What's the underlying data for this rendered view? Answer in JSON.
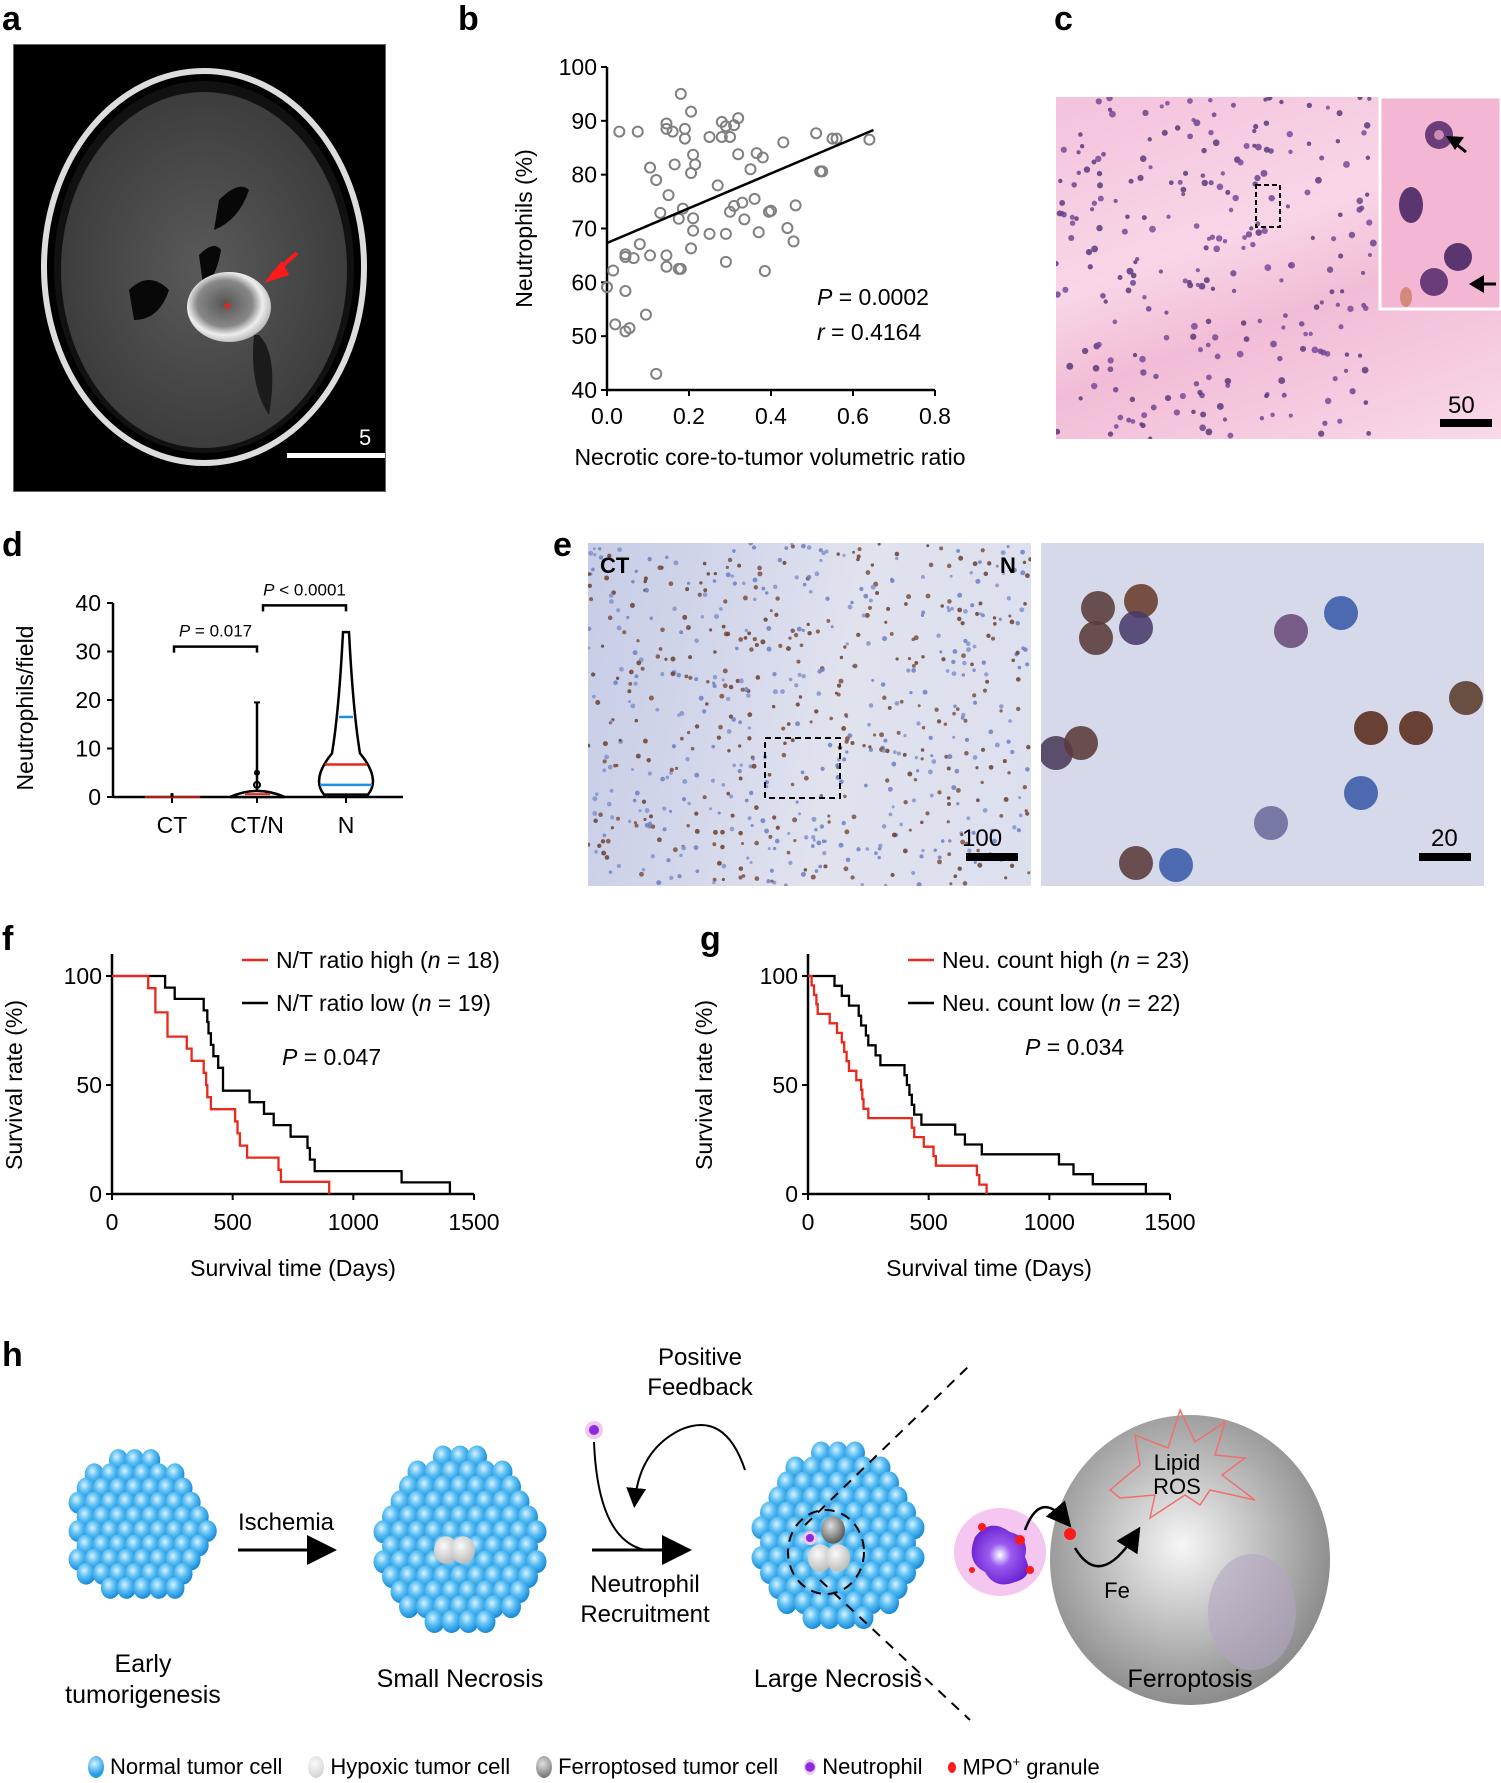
{
  "panels": {
    "a": {
      "label": "a",
      "scale_bar": "5",
      "annotation_arrow": "red-arrow",
      "annotation_star": "*"
    },
    "b": {
      "label": "b"
    },
    "c": {
      "label": "c",
      "scale_bar": "50"
    },
    "d": {
      "label": "d"
    },
    "e": {
      "label": "e",
      "left_tag_ct": "CT",
      "left_tag_n": "N",
      "scale_bar_left": "100",
      "scale_bar_right": "20"
    },
    "f": {
      "label": "f"
    },
    "g": {
      "label": "g"
    },
    "h": {
      "label": "h"
    }
  },
  "chart_data": [
    {
      "id": "b",
      "type": "scatter",
      "title": "",
      "xlabel": "Necrotic core-to-tumor volumetric ratio",
      "ylabel": "Neutrophils (%)",
      "xlim": [
        0.0,
        0.8
      ],
      "ylim": [
        40,
        100
      ],
      "xticks": [
        "0.0",
        "0.2",
        "0.4",
        "0.6",
        "0.8"
      ],
      "yticks": [
        "40",
        "50",
        "60",
        "70",
        "80",
        "90",
        "100"
      ],
      "annotations": {
        "p": "P = 0.0002",
        "r": "r = 0.4164"
      },
      "regression_line": {
        "x0": 0.0,
        "y0": 67.3,
        "x1": 0.65,
        "y1": 88.3
      },
      "points": [
        [
          0.03,
          88.0
        ],
        [
          0.075,
          88.0
        ],
        [
          0.145,
          89.5
        ],
        [
          0.145,
          88.5
        ],
        [
          0.16,
          88.0
        ],
        [
          0.18,
          95.0
        ],
        [
          0.19,
          88.5
        ],
        [
          0.19,
          86.7
        ],
        [
          0.205,
          91.7
        ],
        [
          0.28,
          89.8
        ],
        [
          0.29,
          89.0
        ],
        [
          0.31,
          89.2
        ],
        [
          0.32,
          90.5
        ],
        [
          0.25,
          87.0
        ],
        [
          0.28,
          87.0
        ],
        [
          0.3,
          87.0
        ],
        [
          0.43,
          86.0
        ],
        [
          0.51,
          87.7
        ],
        [
          0.55,
          86.7
        ],
        [
          0.56,
          86.7
        ],
        [
          0.64,
          86.5
        ],
        [
          0.105,
          81.3
        ],
        [
          0.12,
          79.0
        ],
        [
          0.165,
          81.9
        ],
        [
          0.21,
          83.7
        ],
        [
          0.215,
          81.9
        ],
        [
          0.205,
          80.3
        ],
        [
          0.32,
          83.8
        ],
        [
          0.365,
          84.0
        ],
        [
          0.38,
          83.2
        ],
        [
          0.35,
          81.0
        ],
        [
          0.52,
          80.6
        ],
        [
          0.525,
          80.6
        ],
        [
          0.15,
          76.2
        ],
        [
          0.27,
          78.0
        ],
        [
          0.13,
          72.9
        ],
        [
          0.185,
          73.7
        ],
        [
          0.175,
          71.8
        ],
        [
          0.21,
          71.9
        ],
        [
          0.3,
          73.1
        ],
        [
          0.31,
          74.2
        ],
        [
          0.33,
          74.8
        ],
        [
          0.36,
          75.5
        ],
        [
          0.395,
          73.1
        ],
        [
          0.4,
          73.3
        ],
        [
          0.46,
          74.3
        ],
        [
          0.335,
          71.7
        ],
        [
          0.21,
          69.6
        ],
        [
          0.25,
          69.0
        ],
        [
          0.29,
          69.0
        ],
        [
          0.37,
          69.3
        ],
        [
          0.44,
          70.1
        ],
        [
          0.455,
          67.6
        ],
        [
          0.08,
          67.1
        ],
        [
          0.045,
          65.2
        ],
        [
          0.045,
          64.7
        ],
        [
          0.065,
          64.5
        ],
        [
          0.105,
          65.0
        ],
        [
          0.145,
          65.0
        ],
        [
          0.205,
          66.3
        ],
        [
          0.015,
          62.2
        ],
        [
          0.145,
          62.9
        ],
        [
          0.175,
          62.5
        ],
        [
          0.18,
          62.5
        ],
        [
          0.29,
          63.8
        ],
        [
          0.385,
          62.1
        ],
        [
          0.0,
          59.1
        ],
        [
          0.045,
          58.4
        ],
        [
          0.02,
          52.2
        ],
        [
          0.095,
          54.0
        ],
        [
          0.045,
          50.9
        ],
        [
          0.055,
          51.5
        ],
        [
          0.12,
          43.0
        ]
      ]
    },
    {
      "id": "d",
      "type": "violin",
      "ylabel": "Neutrophils/field",
      "ylim": [
        0,
        40
      ],
      "yticks": [
        "0",
        "10",
        "20",
        "30",
        "40"
      ],
      "categories": [
        "CT",
        "CT/N",
        "N"
      ],
      "series": [
        {
          "name": "CT",
          "max": 0.8,
          "median": 0.0,
          "q1": 0.0,
          "q3": 0.0
        },
        {
          "name": "CT/N",
          "max": 19.5,
          "median": 0.5,
          "q1": 0.0,
          "q3": 1.0
        },
        {
          "name": "N",
          "max": 34.0,
          "median": 6.7,
          "q1": 2.5,
          "q3": 16.5
        }
      ],
      "comparisons": [
        {
          "from": "CT",
          "to": "CT/N",
          "label": "P = 0.017"
        },
        {
          "from": "CT/N",
          "to": "N",
          "label": "P < 0.0001"
        }
      ],
      "colors": {
        "median": "#e8291c",
        "quartile": "#1e90e0"
      }
    },
    {
      "id": "f",
      "type": "line",
      "subtype": "kaplan-meier",
      "xlabel": "Survival time (Days)",
      "ylabel": "Survival rate (%)",
      "xlim": [
        0,
        1500
      ],
      "ylim": [
        0,
        100
      ],
      "xticks": [
        "0",
        "500",
        "1000",
        "1500"
      ],
      "yticks": [
        "0",
        "50",
        "100"
      ],
      "annotation": "P = 0.047",
      "series": [
        {
          "name": "N/T ratio high",
          "n_label": "(n = 18)",
          "color": "#e8291c",
          "steps": [
            [
              0,
              100
            ],
            [
              150,
              100
            ],
            [
              150,
              94.4
            ],
            [
              180,
              94.4
            ],
            [
              180,
              83.3
            ],
            [
              230,
              83.3
            ],
            [
              230,
              72.2
            ],
            [
              310,
              72.2
            ],
            [
              310,
              66.7
            ],
            [
              330,
              66.7
            ],
            [
              330,
              61.1
            ],
            [
              380,
              61.1
            ],
            [
              380,
              55.6
            ],
            [
              390,
              55.6
            ],
            [
              390,
              50
            ],
            [
              395,
              50
            ],
            [
              395,
              44.4
            ],
            [
              410,
              44.4
            ],
            [
              410,
              38.9
            ],
            [
              510,
              38.9
            ],
            [
              510,
              33.3
            ],
            [
              520,
              33.3
            ],
            [
              520,
              27.8
            ],
            [
              530,
              27.8
            ],
            [
              530,
              22.2
            ],
            [
              560,
              22.2
            ],
            [
              560,
              16.7
            ],
            [
              690,
              16.7
            ],
            [
              690,
              11.1
            ],
            [
              700,
              11.1
            ],
            [
              700,
              5.6
            ],
            [
              900,
              5.6
            ],
            [
              900,
              0
            ]
          ]
        },
        {
          "name": "N/T ratio low",
          "n_label": "(n = 19)",
          "color": "#000000",
          "steps": [
            [
              0,
              100
            ],
            [
              220,
              100
            ],
            [
              220,
              94.7
            ],
            [
              260,
              94.7
            ],
            [
              260,
              89.5
            ],
            [
              380,
              89.5
            ],
            [
              380,
              84.2
            ],
            [
              395,
              84.2
            ],
            [
              395,
              78.9
            ],
            [
              400,
              78.9
            ],
            [
              400,
              73.7
            ],
            [
              410,
              73.7
            ],
            [
              410,
              68.4
            ],
            [
              420,
              68.4
            ],
            [
              420,
              63.2
            ],
            [
              440,
              63.2
            ],
            [
              440,
              57.9
            ],
            [
              460,
              57.9
            ],
            [
              460,
              47.4
            ],
            [
              570,
              47.4
            ],
            [
              570,
              42.1
            ],
            [
              630,
              42.1
            ],
            [
              630,
              36.8
            ],
            [
              670,
              36.8
            ],
            [
              670,
              31.6
            ],
            [
              740,
              31.6
            ],
            [
              740,
              26.3
            ],
            [
              810,
              26.3
            ],
            [
              810,
              21.1
            ],
            [
              820,
              21.1
            ],
            [
              820,
              15.8
            ],
            [
              840,
              15.8
            ],
            [
              840,
              10.5
            ],
            [
              1200,
              10.5
            ],
            [
              1200,
              5.3
            ],
            [
              1400,
              5.3
            ],
            [
              1400,
              0
            ]
          ]
        }
      ]
    },
    {
      "id": "g",
      "type": "line",
      "subtype": "kaplan-meier",
      "xlabel": "Survival time (Days)",
      "ylabel": "Survival rate (%)",
      "xlim": [
        0,
        1500
      ],
      "ylim": [
        0,
        100
      ],
      "xticks": [
        "0",
        "500",
        "1000",
        "1500"
      ],
      "yticks": [
        "0",
        "50",
        "100"
      ],
      "annotation": "P = 0.034",
      "series": [
        {
          "name": "Neu. count high",
          "n_label": "(n = 23)",
          "color": "#e8291c",
          "steps": [
            [
              0,
              100
            ],
            [
              15,
              100
            ],
            [
              15,
              95.7
            ],
            [
              25,
              95.7
            ],
            [
              25,
              91.3
            ],
            [
              35,
              91.3
            ],
            [
              35,
              87
            ],
            [
              40,
              87
            ],
            [
              40,
              82.6
            ],
            [
              90,
              82.6
            ],
            [
              90,
              78.3
            ],
            [
              120,
              78.3
            ],
            [
              120,
              73.9
            ],
            [
              140,
              73.9
            ],
            [
              140,
              69.6
            ],
            [
              150,
              69.6
            ],
            [
              150,
              65.2
            ],
            [
              160,
              65.2
            ],
            [
              160,
              60.9
            ],
            [
              170,
              60.9
            ],
            [
              170,
              56.5
            ],
            [
              200,
              56.5
            ],
            [
              200,
              52.2
            ],
            [
              220,
              52.2
            ],
            [
              220,
              47.8
            ],
            [
              225,
              47.8
            ],
            [
              225,
              43.5
            ],
            [
              230,
              43.5
            ],
            [
              230,
              39.1
            ],
            [
              250,
              39.1
            ],
            [
              250,
              34.8
            ],
            [
              430,
              34.8
            ],
            [
              430,
              30.4
            ],
            [
              440,
              30.4
            ],
            [
              440,
              26.1
            ],
            [
              480,
              26.1
            ],
            [
              480,
              21.7
            ],
            [
              520,
              21.7
            ],
            [
              520,
              17.4
            ],
            [
              530,
              17.4
            ],
            [
              530,
              13
            ],
            [
              700,
              13
            ],
            [
              700,
              8.7
            ],
            [
              710,
              8.7
            ],
            [
              710,
              4.3
            ],
            [
              740,
              4.3
            ],
            [
              740,
              0
            ]
          ]
        },
        {
          "name": "Neu. count low",
          "n_label": "(n = 22)",
          "color": "#000000",
          "steps": [
            [
              0,
              100
            ],
            [
              110,
              100
            ],
            [
              110,
              95.5
            ],
            [
              140,
              95.5
            ],
            [
              140,
              90.9
            ],
            [
              170,
              90.9
            ],
            [
              170,
              86.4
            ],
            [
              210,
              86.4
            ],
            [
              210,
              81.8
            ],
            [
              220,
              81.8
            ],
            [
              220,
              77.3
            ],
            [
              240,
              77.3
            ],
            [
              240,
              72.7
            ],
            [
              250,
              72.7
            ],
            [
              250,
              68.2
            ],
            [
              280,
              68.2
            ],
            [
              280,
              63.6
            ],
            [
              300,
              63.6
            ],
            [
              300,
              59.1
            ],
            [
              400,
              59.1
            ],
            [
              400,
              54.5
            ],
            [
              410,
              54.5
            ],
            [
              410,
              50
            ],
            [
              420,
              50
            ],
            [
              420,
              45.5
            ],
            [
              430,
              45.5
            ],
            [
              430,
              40.9
            ],
            [
              440,
              40.9
            ],
            [
              440,
              36.4
            ],
            [
              470,
              36.4
            ],
            [
              470,
              31.8
            ],
            [
              610,
              31.8
            ],
            [
              610,
              27.3
            ],
            [
              650,
              27.3
            ],
            [
              650,
              22.7
            ],
            [
              720,
              22.7
            ],
            [
              720,
              18.2
            ],
            [
              1040,
              18.2
            ],
            [
              1040,
              13.6
            ],
            [
              1100,
              13.6
            ],
            [
              1100,
              9.1
            ],
            [
              1180,
              9.1
            ],
            [
              1180,
              4.5
            ],
            [
              1400,
              4.5
            ],
            [
              1400,
              0
            ]
          ]
        }
      ]
    }
  ],
  "schematic": {
    "stages": [
      "Early\ntumorigenesis",
      "Small Necrosis",
      "Large Necrosis",
      "Ferroptosis"
    ],
    "stage_early_line1": "Early",
    "stage_early_line2": "tumorigenesis",
    "stage_small": "Small Necrosis",
    "stage_large": "Large Necrosis",
    "stage_ferro": "Ferroptosis",
    "arrow1_label": "Ischemia",
    "arrow2_label_line1": "Neutrophil",
    "arrow2_label_line2": "Recruitment",
    "feedback_line1": "Positive",
    "feedback_line2": "Feedback",
    "ros_line1": "Lipid",
    "ros_line2": "ROS",
    "fe_label": "Fe",
    "legend": [
      {
        "icon": "normal-tumor-cell",
        "label": "Normal tumor cell",
        "color": "#2a9fe8"
      },
      {
        "icon": "hypoxic-tumor-cell",
        "label": "Hypoxic tumor cell",
        "color": "#d4d4d4"
      },
      {
        "icon": "ferroptosed-tumor-cell",
        "label": "Ferroptosed tumor cell",
        "color": "#8a8a8a"
      },
      {
        "icon": "neutrophil",
        "label": "Neutrophil",
        "color": "#8a2be2"
      },
      {
        "icon": "mpo-granule",
        "label": "MPO",
        "sup": "+",
        "suffix": " granule",
        "color": "#ff1a1a"
      }
    ]
  }
}
